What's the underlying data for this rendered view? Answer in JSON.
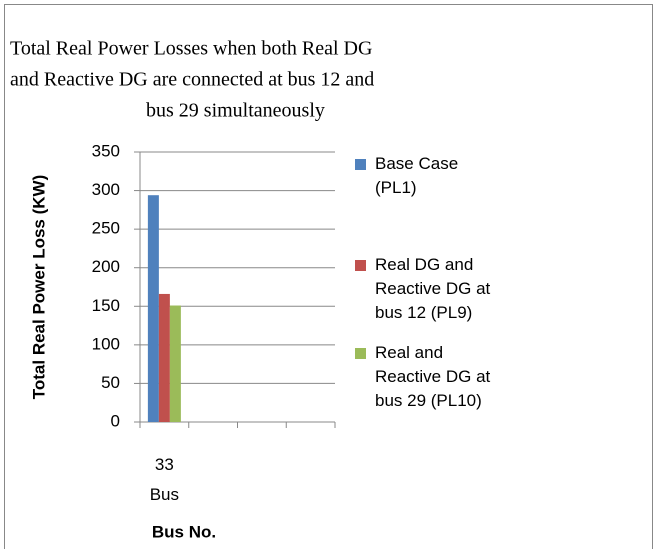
{
  "chart_data": {
    "type": "bar",
    "title": [
      "Total Real Power Losses when both Real DG",
      "and Reactive DG are connected at bus 12 and",
      "bus 29 simultaneously"
    ],
    "x_label": "Bus No.",
    "y_label": "Total Real Power Loss (KW)",
    "categories": [
      "33 Bus",
      null,
      null,
      null
    ],
    "series": [
      {
        "name": "Base Case (PL1)",
        "color": "#4f81bd",
        "values": [
          294,
          null,
          null,
          null
        ]
      },
      {
        "name": "Real DG and Reactive DG at bus 12 (PL9)",
        "color": "#c0504d",
        "values": [
          166,
          null,
          null,
          null
        ]
      },
      {
        "name": "Real and Reactive DG at bus 29 (PL10)",
        "color": "#9bbb59",
        "values": [
          151,
          null,
          null,
          null
        ]
      }
    ],
    "ylim": [
      0,
      350
    ],
    "yticks": [
      0,
      50,
      100,
      150,
      200,
      250,
      300,
      350
    ],
    "grid": true,
    "legend": "right"
  }
}
